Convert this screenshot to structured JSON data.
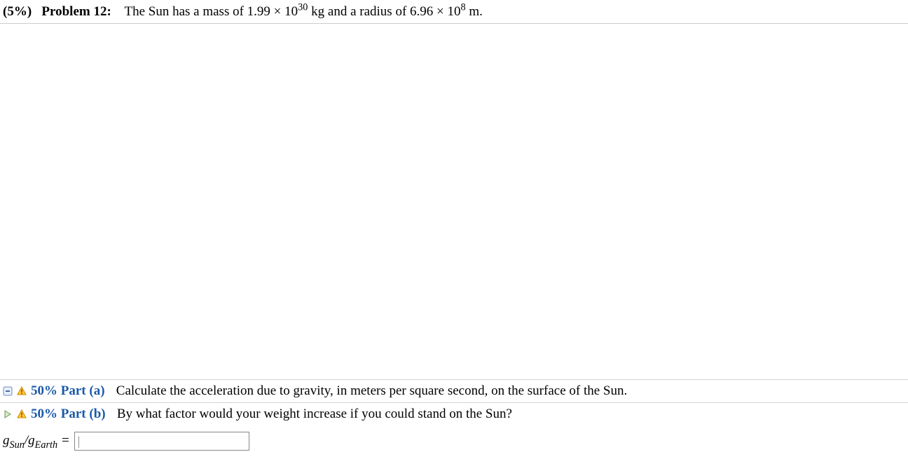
{
  "problem": {
    "weight": "(5%)",
    "label": "Problem 12:",
    "text_html": "The Sun has a mass of 1.99 × 10<span class='sup'>30</span> kg and a radius of 6.96 × 10<span class='sup'>8</span> m."
  },
  "parts": [
    {
      "status_icon": "collapse",
      "warn_icon": true,
      "label": "50% Part (a)",
      "text": "Calculate the acceleration due to gravity, in meters per square second, on the surface of the Sun."
    },
    {
      "status_icon": "expand",
      "warn_icon": true,
      "label": "50% Part (b)",
      "text": "By what factor would your weight increase if you could stand on the Sun?"
    }
  ],
  "answer": {
    "label_html": "<span class='italic'>g</span><span class='sub'>Sun</span>/<span class='italic'>g</span><span class='sub'>Earth</span> =",
    "value": "",
    "placeholder": "|"
  },
  "colors": {
    "part_label": "#1a5aa8",
    "border": "#d4d4d4"
  }
}
